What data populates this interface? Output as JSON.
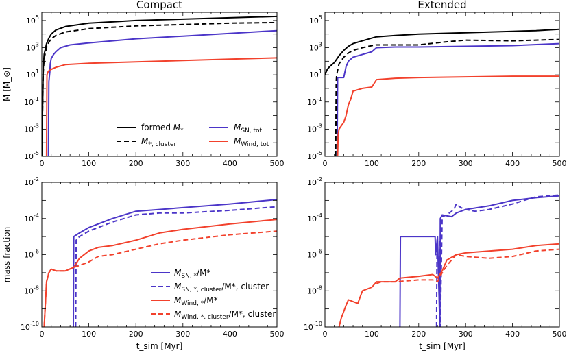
{
  "colors": {
    "formed": "#000000",
    "cluster": "#000000",
    "sn": "#4b35c8",
    "wind": "#f2412c"
  },
  "chart_data": [
    {
      "id": "top-left",
      "type": "line",
      "title": "Compact",
      "ylabel": "M [M_⊙]",
      "xlabel": "",
      "yscale": "log",
      "ylim": [
        -5,
        5.6
      ],
      "xlim": [
        0,
        500
      ],
      "yticks": [
        -5,
        -3,
        -1,
        1,
        3,
        5
      ],
      "xticks": [
        0,
        100,
        200,
        300,
        400,
        500
      ],
      "legend": {
        "placement": "lower-right",
        "columns": 2,
        "entries": [
          {
            "key": "formed",
            "dash": "solid",
            "label_pre": "formed ",
            "label_base": "M",
            "label_sub": "*",
            "label_sup": ""
          },
          {
            "key": "sn",
            "dash": "solid",
            "label_pre": "",
            "label_base": "M",
            "label_sub": "SN, tot",
            "label_sup": ""
          },
          {
            "key": "cluster",
            "dash": "dash",
            "label_pre": "",
            "label_base": "M",
            "label_sub": "*, cluster",
            "label_sup": ""
          },
          {
            "key": "wind",
            "dash": "solid",
            "label_pre": "",
            "label_base": "M",
            "label_sub": "Wind, tot",
            "label_sup": ""
          }
        ]
      },
      "series": [
        {
          "key": "formed",
          "name": "formed M*",
          "dash": "solid",
          "x": [
            0,
            3,
            5,
            10,
            15,
            20,
            30,
            50,
            80,
            100,
            150,
            200,
            300,
            400,
            500
          ],
          "y": [
            -5,
            1.5,
            2.5,
            3.3,
            3.7,
            4.0,
            4.3,
            4.55,
            4.7,
            4.8,
            4.9,
            5.0,
            5.1,
            5.2,
            5.3
          ]
        },
        {
          "key": "cluster",
          "name": "M*,cluster",
          "dash": "dash",
          "x": [
            0,
            3,
            5,
            10,
            15,
            20,
            30,
            50,
            80,
            100,
            150,
            200,
            300,
            400,
            500
          ],
          "y": [
            -5,
            1.2,
            2.2,
            3.0,
            3.4,
            3.65,
            3.9,
            4.15,
            4.3,
            4.4,
            4.5,
            4.6,
            4.7,
            4.8,
            4.85
          ]
        },
        {
          "key": "sn",
          "name": "M SN,tot",
          "dash": "solid",
          "x": [
            14,
            15,
            17,
            18,
            20,
            25,
            30,
            40,
            60,
            100,
            150,
            200,
            300,
            400,
            500
          ],
          "y": [
            -5,
            0.5,
            1.2,
            1.8,
            2.2,
            2.5,
            2.7,
            3.0,
            3.2,
            3.35,
            3.5,
            3.65,
            3.85,
            4.05,
            4.25
          ]
        },
        {
          "key": "wind",
          "name": "M Wind,tot",
          "dash": "solid",
          "x": [
            10,
            11,
            13,
            15,
            20,
            30,
            50,
            100,
            150,
            200,
            250,
            300,
            400,
            500
          ],
          "y": [
            -5,
            1.0,
            1.2,
            1.3,
            1.4,
            1.55,
            1.75,
            1.85,
            1.9,
            1.95,
            2.0,
            2.05,
            2.15,
            2.25
          ]
        }
      ]
    },
    {
      "id": "top-right",
      "type": "line",
      "title": "Extended",
      "ylabel": "",
      "xlabel": "",
      "yscale": "log",
      "ylim": [
        -5,
        5.6
      ],
      "xlim": [
        0,
        500
      ],
      "yticks": [
        -5,
        -3,
        -1,
        1,
        3,
        5
      ],
      "xticks": [
        0,
        100,
        200,
        300,
        400,
        500
      ],
      "series": [
        {
          "key": "formed",
          "name": "formed M*",
          "dash": "solid",
          "x": [
            0,
            5,
            10,
            20,
            30,
            40,
            50,
            60,
            80,
            100,
            110,
            150,
            200,
            300,
            400,
            450,
            500
          ],
          "y": [
            1.0,
            1.4,
            1.6,
            1.9,
            2.4,
            2.8,
            3.1,
            3.3,
            3.5,
            3.7,
            3.8,
            3.9,
            4.0,
            4.1,
            4.2,
            4.25,
            4.35
          ]
        },
        {
          "key": "cluster",
          "name": "M*,cluster",
          "dash": "dash",
          "x": [
            23,
            24,
            25,
            30,
            40,
            50,
            60,
            80,
            100,
            110,
            150,
            200,
            250,
            300,
            400,
            450,
            500
          ],
          "y": [
            -5,
            0.5,
            1.0,
            1.8,
            2.3,
            2.6,
            2.8,
            3.0,
            3.15,
            3.2,
            3.2,
            3.2,
            3.4,
            3.55,
            3.5,
            3.55,
            3.6
          ]
        },
        {
          "key": "sn",
          "name": "M SN,tot",
          "dash": "solid",
          "x": [
            26,
            27,
            30,
            40,
            45,
            50,
            60,
            80,
            100,
            110,
            150,
            200,
            300,
            400,
            500
          ],
          "y": [
            -5,
            0.8,
            0.8,
            0.8,
            1.6,
            2.0,
            2.3,
            2.5,
            2.7,
            3.0,
            3.05,
            3.05,
            3.1,
            3.15,
            3.3
          ]
        },
        {
          "key": "wind",
          "name": "M Wind,tot",
          "dash": "solid",
          "x": [
            27,
            28,
            30,
            40,
            45,
            50,
            55,
            60,
            80,
            100,
            110,
            150,
            200,
            300,
            400,
            500
          ],
          "y": [
            -5,
            -3.5,
            -3.0,
            -2.5,
            -2.0,
            -1.2,
            -0.8,
            -0.2,
            0.0,
            0.1,
            0.65,
            0.75,
            0.8,
            0.85,
            0.9,
            0.9
          ]
        }
      ]
    },
    {
      "id": "bottom-left",
      "type": "line",
      "title": "",
      "ylabel": "mass fraction",
      "xlabel": "t_sim [Myr]",
      "yscale": "log",
      "ylim": [
        -10,
        -2
      ],
      "xlim": [
        0,
        500
      ],
      "yticks": [
        -10,
        -8,
        -6,
        -4,
        -2
      ],
      "xticks": [
        0,
        100,
        200,
        300,
        400,
        500
      ],
      "legend": {
        "placement": "lower-right",
        "columns": 1,
        "entries": [
          {
            "key": "sn",
            "dash": "solid",
            "label_pre": "",
            "label_base": "M",
            "label_sub": "SN, *",
            "label_sup": "/M*"
          },
          {
            "key": "sn",
            "dash": "dash",
            "label_pre": "",
            "label_base": "M",
            "label_sub": "SN, *, cluster",
            "label_sup": "/M*, cluster"
          },
          {
            "key": "wind",
            "dash": "solid",
            "label_pre": "",
            "label_base": "M",
            "label_sub": "Wind, *",
            "label_sup": "/M*"
          },
          {
            "key": "wind",
            "dash": "dash",
            "label_pre": "",
            "label_base": "M",
            "label_sub": "Wind, *, cluster",
            "label_sup": "/M*, cluster"
          }
        ]
      },
      "series": [
        {
          "key": "sn",
          "name": "M SN,*/M*",
          "dash": "solid",
          "x": [
            67,
            68,
            80,
            100,
            120,
            150,
            200,
            250,
            300,
            400,
            500
          ],
          "y": [
            -10,
            -5.0,
            -4.8,
            -4.5,
            -4.3,
            -4.0,
            -3.6,
            -3.5,
            -3.4,
            -3.2,
            -2.95
          ]
        },
        {
          "key": "sn",
          "name": "M SN,*,cluster/M*,cluster",
          "dash": "dash",
          "x": [
            72,
            73,
            80,
            100,
            120,
            150,
            200,
            250,
            300,
            400,
            500
          ],
          "y": [
            -10,
            -5.2,
            -5.0,
            -4.7,
            -4.5,
            -4.2,
            -3.8,
            -3.7,
            -3.7,
            -3.55,
            -3.35
          ]
        },
        {
          "key": "wind",
          "name": "M Wind,*/M*",
          "dash": "solid",
          "x": [
            5,
            10,
            15,
            20,
            30,
            50,
            68,
            80,
            100,
            120,
            150,
            200,
            250,
            300,
            400,
            500
          ],
          "y": [
            -10,
            -7.5,
            -7.0,
            -6.8,
            -6.9,
            -6.9,
            -6.7,
            -6.2,
            -5.8,
            -5.6,
            -5.5,
            -5.2,
            -4.8,
            -4.6,
            -4.3,
            -4.05
          ]
        },
        {
          "key": "wind",
          "name": "M Wind,*,cluster/M*,cluster",
          "dash": "dash",
          "x": [
            5,
            10,
            15,
            20,
            30,
            50,
            68,
            80,
            100,
            120,
            150,
            200,
            250,
            300,
            400,
            500
          ],
          "y": [
            -10,
            -7.5,
            -7.0,
            -6.8,
            -6.9,
            -6.9,
            -6.7,
            -6.6,
            -6.4,
            -6.1,
            -6.0,
            -5.7,
            -5.4,
            -5.2,
            -4.9,
            -4.7
          ]
        }
      ]
    },
    {
      "id": "bottom-right",
      "type": "line",
      "title": "",
      "ylabel": "",
      "xlabel": "t_sim [Myr]",
      "yscale": "log",
      "ylim": [
        -10,
        -2
      ],
      "xlim": [
        0,
        500
      ],
      "yticks": [
        -10,
        -8,
        -6,
        -4,
        -2
      ],
      "xticks": [
        0,
        100,
        200,
        300,
        400,
        500
      ],
      "series": [
        {
          "key": "sn",
          "name": "M SN,*/M*",
          "dash": "solid",
          "x": [
            160,
            161,
            235,
            236,
            240,
            245,
            246,
            250,
            270,
            280,
            300,
            350,
            400,
            450,
            500
          ],
          "y": [
            -10,
            -5.0,
            -5.0,
            -6.0,
            -5.0,
            -10,
            -4.0,
            -3.8,
            -3.9,
            -3.7,
            -3.5,
            -3.3,
            -3.0,
            -2.85,
            -2.75
          ]
        },
        {
          "key": "sn",
          "name": "M SN,*,cluster/M*,cluster",
          "dash": "dash",
          "x": [
            238,
            239,
            245,
            246,
            250,
            260,
            275,
            280,
            290,
            300,
            320,
            350,
            400,
            450,
            500
          ],
          "y": [
            -10,
            -5.2,
            -5.2,
            -10,
            -3.9,
            -3.8,
            -3.5,
            -3.2,
            -3.4,
            -3.5,
            -3.6,
            -3.5,
            -3.2,
            -2.8,
            -2.7
          ]
        },
        {
          "key": "wind",
          "name": "M Wind,*/M*",
          "dash": "solid",
          "x": [
            30,
            35,
            45,
            50,
            70,
            80,
            100,
            110,
            150,
            160,
            200,
            230,
            240,
            250,
            260,
            280,
            300,
            350,
            400,
            450,
            500
          ],
          "y": [
            -10,
            -9.5,
            -8.8,
            -8.5,
            -8.7,
            -8.0,
            -7.8,
            -7.5,
            -7.5,
            -7.3,
            -7.2,
            -7.1,
            -7.3,
            -6.9,
            -6.3,
            -6.0,
            -5.9,
            -5.8,
            -5.7,
            -5.5,
            -5.4
          ]
        },
        {
          "key": "wind",
          "name": "M Wind,*,cluster/M*,cluster",
          "dash": "dash",
          "x": [
            110,
            120,
            150,
            200,
            230,
            240,
            250,
            260,
            280,
            300,
            350,
            400,
            450,
            500
          ],
          "y": [
            -7.6,
            -7.5,
            -7.5,
            -7.4,
            -7.4,
            -7.5,
            -7.0,
            -6.6,
            -6.0,
            -6.1,
            -6.2,
            -6.1,
            -5.8,
            -5.7
          ]
        }
      ]
    }
  ]
}
